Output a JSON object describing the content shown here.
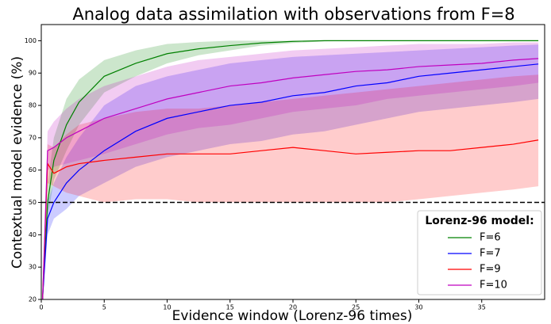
{
  "chart_data": {
    "type": "line",
    "title": "Analog data assimilation with observations from F=8",
    "x_label": "Evidence window (Lorenz-96 times)",
    "y_label": "Contextual model evidence (%)",
    "x": [
      0.1,
      0.5,
      1,
      2,
      3,
      5,
      7.5,
      10,
      12.5,
      15,
      17.5,
      20,
      22.5,
      25,
      27.5,
      30,
      32.5,
      35,
      37.5,
      39.5
    ],
    "series": [
      {
        "name": "F=6",
        "color": "#008000",
        "values": [
          20,
          50,
          63,
          74,
          81,
          89,
          93,
          96,
          97.5,
          98.5,
          99.3,
          99.8,
          100,
          100,
          100,
          100,
          100,
          100,
          100,
          100
        ],
        "lower": [
          20,
          45,
          57,
          66,
          74,
          84,
          89,
          93,
          95.5,
          97,
          98.5,
          99.3,
          99.8,
          100,
          100,
          100,
          100,
          100,
          100,
          100
        ],
        "upper": [
          20,
          56,
          70,
          82,
          88,
          94,
          97,
          99,
          99.6,
          100,
          100,
          100,
          100,
          100,
          100,
          100,
          100,
          100,
          100,
          100
        ]
      },
      {
        "name": "F=7",
        "color": "#0000ff",
        "values": [
          20,
          45,
          50,
          56,
          60,
          66,
          72,
          76,
          78,
          80,
          81,
          83,
          84,
          86,
          87,
          89,
          90,
          91,
          92,
          92.8
        ],
        "lower": [
          20,
          40,
          45,
          48,
          52,
          56,
          61,
          64,
          66,
          68,
          69,
          71,
          72,
          74,
          76,
          78,
          79,
          80,
          81,
          82
        ],
        "upper": [
          20,
          50,
          56,
          64,
          70,
          80,
          86,
          89,
          91,
          93,
          94,
          95,
          95.5,
          96,
          96.5,
          97,
          97.5,
          98,
          98.5,
          98.8
        ]
      },
      {
        "name": "F=9",
        "color": "#ff0000",
        "values": [
          20,
          62,
          59,
          61,
          62,
          63,
          64,
          65,
          65,
          65,
          66,
          67,
          66,
          65,
          65.5,
          66,
          66,
          67,
          68,
          69.3
        ],
        "lower": [
          20,
          56,
          55,
          53,
          52,
          50,
          51,
          51,
          50,
          50,
          50,
          50,
          50,
          50,
          50,
          51,
          52,
          53,
          54,
          55
        ],
        "upper": [
          20,
          68,
          67,
          71,
          74,
          76,
          78,
          79,
          79,
          80,
          81,
          82,
          83,
          84,
          85,
          86,
          87,
          88,
          89,
          89.5
        ]
      },
      {
        "name": "F=10",
        "color": "#bf00bf",
        "values": [
          20,
          66,
          67,
          70,
          72,
          76,
          79,
          82,
          84,
          86,
          87,
          88.5,
          89.5,
          90.5,
          91,
          92,
          92.5,
          93,
          94,
          94.5
        ],
        "lower": [
          20,
          60,
          61,
          62,
          63,
          65,
          68,
          71,
          73,
          74,
          76,
          78,
          79,
          80,
          82,
          83,
          84,
          85,
          86,
          87
        ],
        "upper": [
          20,
          72,
          75,
          79,
          82,
          86,
          89,
          92,
          94,
          95,
          96,
          97,
          97.5,
          98,
          98.5,
          99,
          99,
          99,
          99.5,
          99.5
        ]
      }
    ],
    "hline": 50,
    "xlim": [
      0,
      40
    ],
    "ylim": [
      20,
      105
    ],
    "xticks": [
      0,
      5,
      10,
      15,
      20,
      25,
      30,
      35
    ],
    "yticks": [
      20,
      30,
      40,
      50,
      60,
      70,
      80,
      90,
      100
    ],
    "legend_title": "Lorenz-96 model:",
    "legend": "lower right",
    "band_opacity": 0.2
  }
}
